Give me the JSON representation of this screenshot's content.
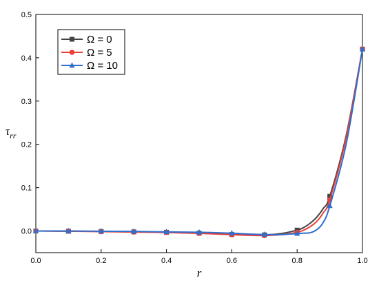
{
  "chart_data": {
    "type": "line",
    "xlabel": "r",
    "ylabel_main": "τ",
    "ylabel_sub": "rr",
    "xlim": [
      0.0,
      1.0
    ],
    "ylim": [
      -0.05,
      0.5
    ],
    "xticks": [
      "0.0",
      "0.2",
      "0.4",
      "0.6",
      "0.8",
      "1.0"
    ],
    "yticks": [
      "0.0",
      "0.1",
      "0.2",
      "0.3",
      "0.4",
      "0.5"
    ],
    "grid": false,
    "legend_position": "top-left",
    "x_markers": [
      0.0,
      0.1,
      0.2,
      0.3,
      0.4,
      0.5,
      0.6,
      0.7,
      0.8,
      0.9,
      1.0
    ],
    "series": [
      {
        "name": "Ω = 0",
        "color": "#444444",
        "marker": "square",
        "x": [
          0.0,
          0.1,
          0.2,
          0.3,
          0.4,
          0.5,
          0.6,
          0.65,
          0.7,
          0.75,
          0.8,
          0.82,
          0.84,
          0.86,
          0.88,
          0.9,
          0.95,
          1.0
        ],
        "y": [
          0.0,
          -0.0005,
          -0.001,
          -0.002,
          -0.003,
          -0.005,
          -0.008,
          -0.009,
          -0.009,
          -0.006,
          0.002,
          0.008,
          0.018,
          0.032,
          0.052,
          0.08,
          0.22,
          0.42
        ]
      },
      {
        "name": "Ω = 5",
        "color": "#e8403a",
        "marker": "circle",
        "x": [
          0.0,
          0.1,
          0.2,
          0.3,
          0.4,
          0.5,
          0.6,
          0.65,
          0.7,
          0.75,
          0.8,
          0.82,
          0.84,
          0.86,
          0.88,
          0.9,
          0.95,
          1.0
        ],
        "y": [
          0.0,
          -0.0005,
          -0.0015,
          -0.0025,
          -0.0035,
          -0.0055,
          -0.0085,
          -0.01,
          -0.0105,
          -0.0085,
          -0.003,
          0.002,
          0.01,
          0.022,
          0.042,
          0.072,
          0.215,
          0.42
        ]
      },
      {
        "name": "Ω = 10",
        "color": "#2f6fce",
        "marker": "triangle",
        "x": [
          0.0,
          0.1,
          0.2,
          0.3,
          0.4,
          0.5,
          0.6,
          0.65,
          0.7,
          0.75,
          0.8,
          0.82,
          0.84,
          0.86,
          0.88,
          0.9,
          0.95,
          1.0
        ],
        "y": [
          0.0,
          0.0,
          -0.0005,
          -0.001,
          -0.002,
          -0.003,
          -0.005,
          -0.007,
          -0.008,
          -0.0085,
          -0.006,
          -0.005,
          -0.004,
          0.003,
          0.02,
          0.058,
          0.2,
          0.42
        ]
      }
    ]
  }
}
